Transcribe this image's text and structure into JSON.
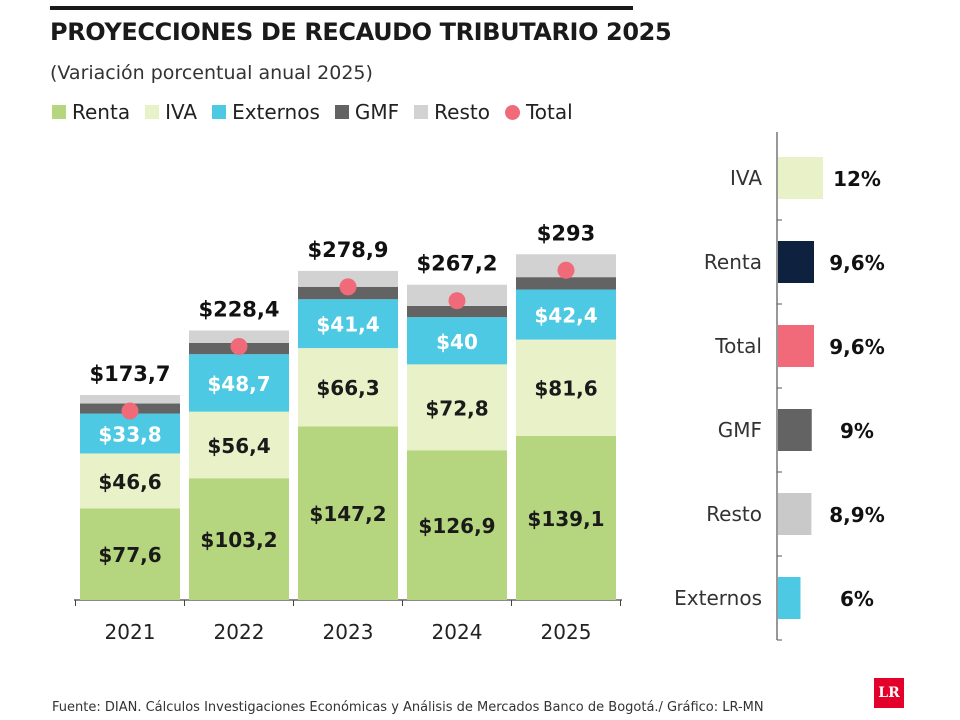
{
  "header": {
    "title": "PROYECCIONES DE RECAUDO TRIBUTARIO 2025",
    "subtitle": "(Variación porcentual anual 2025)"
  },
  "legend": [
    {
      "label": "Renta",
      "color": "#b5d67e",
      "shape": "square"
    },
    {
      "label": "IVA",
      "color": "#e9f1c8",
      "shape": "square"
    },
    {
      "label": "Externos",
      "color": "#4dc9e3",
      "shape": "square"
    },
    {
      "label": "GMF",
      "color": "#636363",
      "shape": "square"
    },
    {
      "label": "Resto",
      "color": "#d2d2d2",
      "shape": "square"
    },
    {
      "label": "Total",
      "color": "#f06a7a",
      "shape": "circle"
    }
  ],
  "chart_data": [
    {
      "type": "bar",
      "stacked": true,
      "categories": [
        "2021",
        "2022",
        "2023",
        "2024",
        "2025"
      ],
      "series": [
        {
          "name": "Renta",
          "color": "#b5d67e",
          "values": [
            77.6,
            103.2,
            147.2,
            126.9,
            139.1
          ],
          "labels": [
            "$77,6",
            "$103,2",
            "$147,2",
            "$126,9",
            "$139,1"
          ],
          "label_color": "#1a1a1a"
        },
        {
          "name": "IVA",
          "color": "#e9f1c8",
          "values": [
            46.6,
            56.4,
            66.3,
            72.8,
            81.6
          ],
          "labels": [
            "$46,6",
            "$56,4",
            "$66,3",
            "$72,8",
            "$81,6"
          ],
          "label_color": "#1a1a1a"
        },
        {
          "name": "Externos",
          "color": "#4dc9e3",
          "values": [
            33.8,
            48.7,
            41.4,
            40,
            42.4
          ],
          "labels": [
            "$33,8",
            "$48,7",
            "$41,4",
            "$40",
            "$42,4"
          ],
          "label_color": "#ffffff"
        },
        {
          "name": "GMF",
          "color": "#636363",
          "values": [
            8.5,
            9.5,
            10.5,
            9.5,
            10.5
          ]
        },
        {
          "name": "Resto",
          "color": "#d2d2d2",
          "values": [
            7.2,
            10.6,
            13.5,
            18.0,
            19.4
          ]
        }
      ],
      "totals": [
        173.7,
        228.4,
        278.9,
        267.2,
        293
      ],
      "total_labels": [
        "$173,7",
        "$228,4",
        "$278,9",
        "$267,2",
        "$293"
      ],
      "total_marker_color": "#f06a7a",
      "ylim": [
        0,
        300
      ]
    },
    {
      "type": "bar",
      "orientation": "horizontal",
      "categories": [
        "IVA",
        "Renta",
        "Total",
        "GMF",
        "Resto",
        "Externos"
      ],
      "values": [
        12,
        9.6,
        9.6,
        9,
        8.9,
        6
      ],
      "value_labels": [
        "12%",
        "9,6%",
        "9,6%",
        "9%",
        "8,9%",
        "6%"
      ],
      "colors": [
        "#e9f1c8",
        "#0e2240",
        "#f06a7a",
        "#636363",
        "#c9c9c9",
        "#4dc9e3"
      ],
      "xlim": [
        0,
        12
      ]
    }
  ],
  "footer": {
    "source": "Fuente: DIAN. Cálculos Investigaciones Económicas y Análisis de Mercados Banco de Bogotá./ Gráfico: LR-MN",
    "logo_text": "LR"
  }
}
